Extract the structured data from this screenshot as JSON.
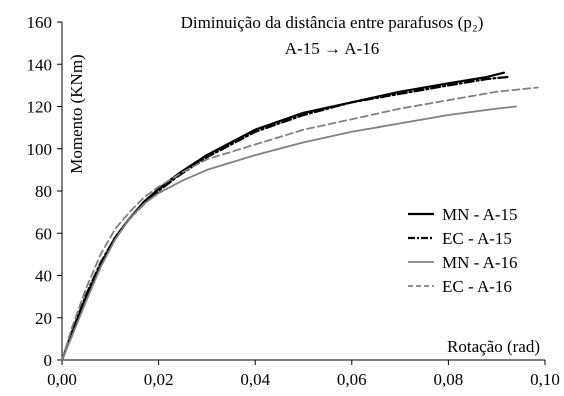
{
  "chart_data": {
    "type": "line",
    "title": "Diminuição da distância entre parafusos (p₂)",
    "subtitle": "A-15 → A-16",
    "xlabel": "Rotação  (rad)",
    "ylabel": "Momento  (KNm)",
    "xlim": [
      0,
      0.1
    ],
    "ylim": [
      0,
      160
    ],
    "xticks": [
      "0,00",
      "0,02",
      "0,04",
      "0,06",
      "0,08",
      "0,10"
    ],
    "yticks": [
      "0",
      "20",
      "40",
      "60",
      "80",
      "100",
      "120",
      "140",
      "160"
    ],
    "grid": false,
    "legend_position": "right",
    "series": [
      {
        "name": "MN - A-15",
        "color": "#000000",
        "style": "solid",
        "points": [
          [
            0,
            0
          ],
          [
            0.002,
            12
          ],
          [
            0.005,
            30
          ],
          [
            0.008,
            45
          ],
          [
            0.011,
            58
          ],
          [
            0.014,
            67
          ],
          [
            0.017,
            75
          ],
          [
            0.02,
            81
          ],
          [
            0.024,
            88
          ],
          [
            0.03,
            97
          ],
          [
            0.035,
            103
          ],
          [
            0.04,
            109
          ],
          [
            0.05,
            117
          ],
          [
            0.06,
            122
          ],
          [
            0.07,
            127
          ],
          [
            0.08,
            131
          ],
          [
            0.088,
            134
          ],
          [
            0.0915,
            136
          ]
        ]
      },
      {
        "name": "EC - A-15",
        "color": "#000000",
        "style": "dashdot",
        "points": [
          [
            0,
            0
          ],
          [
            0.002,
            13
          ],
          [
            0.005,
            31
          ],
          [
            0.008,
            46
          ],
          [
            0.011,
            58
          ],
          [
            0.014,
            67
          ],
          [
            0.017,
            74
          ],
          [
            0.02,
            80
          ],
          [
            0.024,
            87
          ],
          [
            0.03,
            96
          ],
          [
            0.035,
            102
          ],
          [
            0.04,
            108
          ],
          [
            0.05,
            116
          ],
          [
            0.06,
            122
          ],
          [
            0.07,
            126
          ],
          [
            0.08,
            130
          ],
          [
            0.088,
            133
          ],
          [
            0.0925,
            134
          ]
        ]
      },
      {
        "name": "MN - A-16",
        "color": "#808080",
        "style": "solid",
        "points": [
          [
            0,
            0
          ],
          [
            0.002,
            11
          ],
          [
            0.005,
            28
          ],
          [
            0.008,
            44
          ],
          [
            0.011,
            57
          ],
          [
            0.014,
            67
          ],
          [
            0.017,
            74
          ],
          [
            0.02,
            79
          ],
          [
            0.025,
            85
          ],
          [
            0.03,
            90
          ],
          [
            0.04,
            97
          ],
          [
            0.05,
            103
          ],
          [
            0.06,
            108
          ],
          [
            0.07,
            112
          ],
          [
            0.08,
            116
          ],
          [
            0.09,
            119
          ],
          [
            0.094,
            120
          ]
        ]
      },
      {
        "name": "EC - A-16",
        "color": "#808080",
        "style": "dashed",
        "points": [
          [
            0,
            0
          ],
          [
            0.002,
            15
          ],
          [
            0.005,
            34
          ],
          [
            0.008,
            50
          ],
          [
            0.011,
            62
          ],
          [
            0.014,
            70
          ],
          [
            0.017,
            77
          ],
          [
            0.02,
            82
          ],
          [
            0.025,
            89
          ],
          [
            0.03,
            95
          ],
          [
            0.04,
            102
          ],
          [
            0.05,
            109
          ],
          [
            0.06,
            114
          ],
          [
            0.07,
            119
          ],
          [
            0.08,
            123
          ],
          [
            0.09,
            127
          ],
          [
            0.0985,
            129
          ]
        ]
      }
    ]
  }
}
